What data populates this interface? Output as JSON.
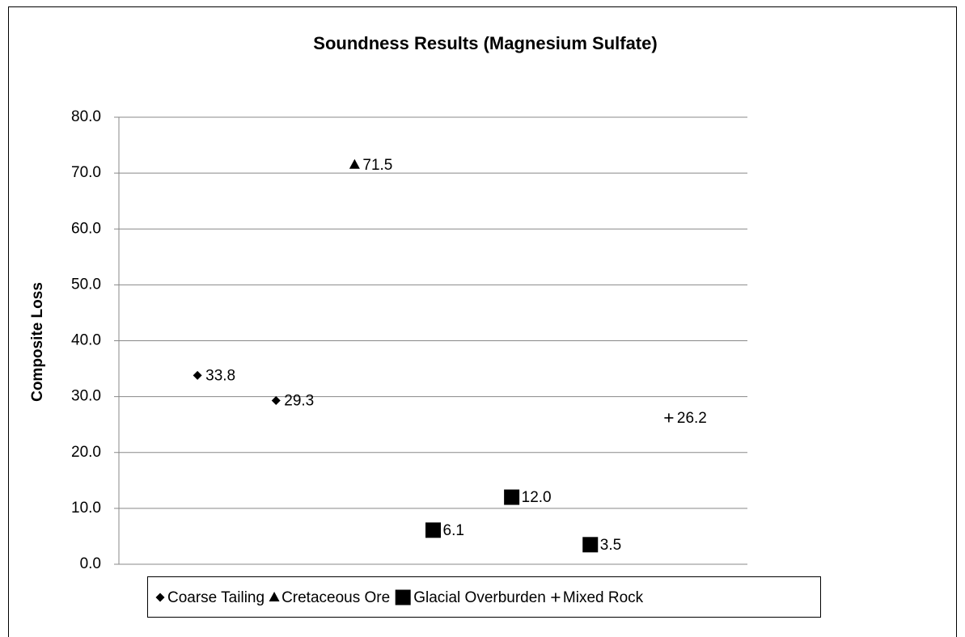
{
  "chart_data": {
    "type": "scatter",
    "title": "Soundness Results (Magnesium Sulfate)",
    "y_label": "Composite Loss",
    "xlim": [
      0,
      8
    ],
    "ylim": [
      0,
      80
    ],
    "yticks": [
      {
        "value": 0,
        "label": "0.0"
      },
      {
        "value": 10,
        "label": "10.0"
      },
      {
        "value": 20,
        "label": "20.0"
      },
      {
        "value": 30,
        "label": "30.0"
      },
      {
        "value": 40,
        "label": "40.0"
      },
      {
        "value": 50,
        "label": "50.0"
      },
      {
        "value": 60,
        "label": "60.0"
      },
      {
        "value": 70,
        "label": "70.0"
      },
      {
        "value": 80,
        "label": "80.0"
      }
    ],
    "grid": true,
    "legend": "bottom",
    "series": [
      {
        "name": "Coarse Tailing",
        "color": "#000000",
        "marker": "diamond",
        "x": [
          1,
          2
        ],
        "values": [
          33.8,
          29.3
        ],
        "value_labels": [
          "33.8",
          "29.3"
        ]
      },
      {
        "name": "Cretaceous Ore",
        "color": "#000000",
        "marker": "triangle",
        "x": [
          3
        ],
        "values": [
          71.5
        ],
        "value_labels": [
          "71.5"
        ]
      },
      {
        "name": "Glacial Overburden",
        "color": "#000000",
        "marker": "square",
        "x": [
          4,
          5,
          6
        ],
        "values": [
          6.1,
          12.0,
          3.5
        ],
        "value_labels": [
          "6.1",
          "12.0",
          "3.5"
        ]
      },
      {
        "name": "Mixed Rock",
        "color": "#000000",
        "marker": "plus",
        "x": [
          7
        ],
        "values": [
          26.2
        ],
        "value_labels": [
          "26.2"
        ]
      }
    ]
  }
}
